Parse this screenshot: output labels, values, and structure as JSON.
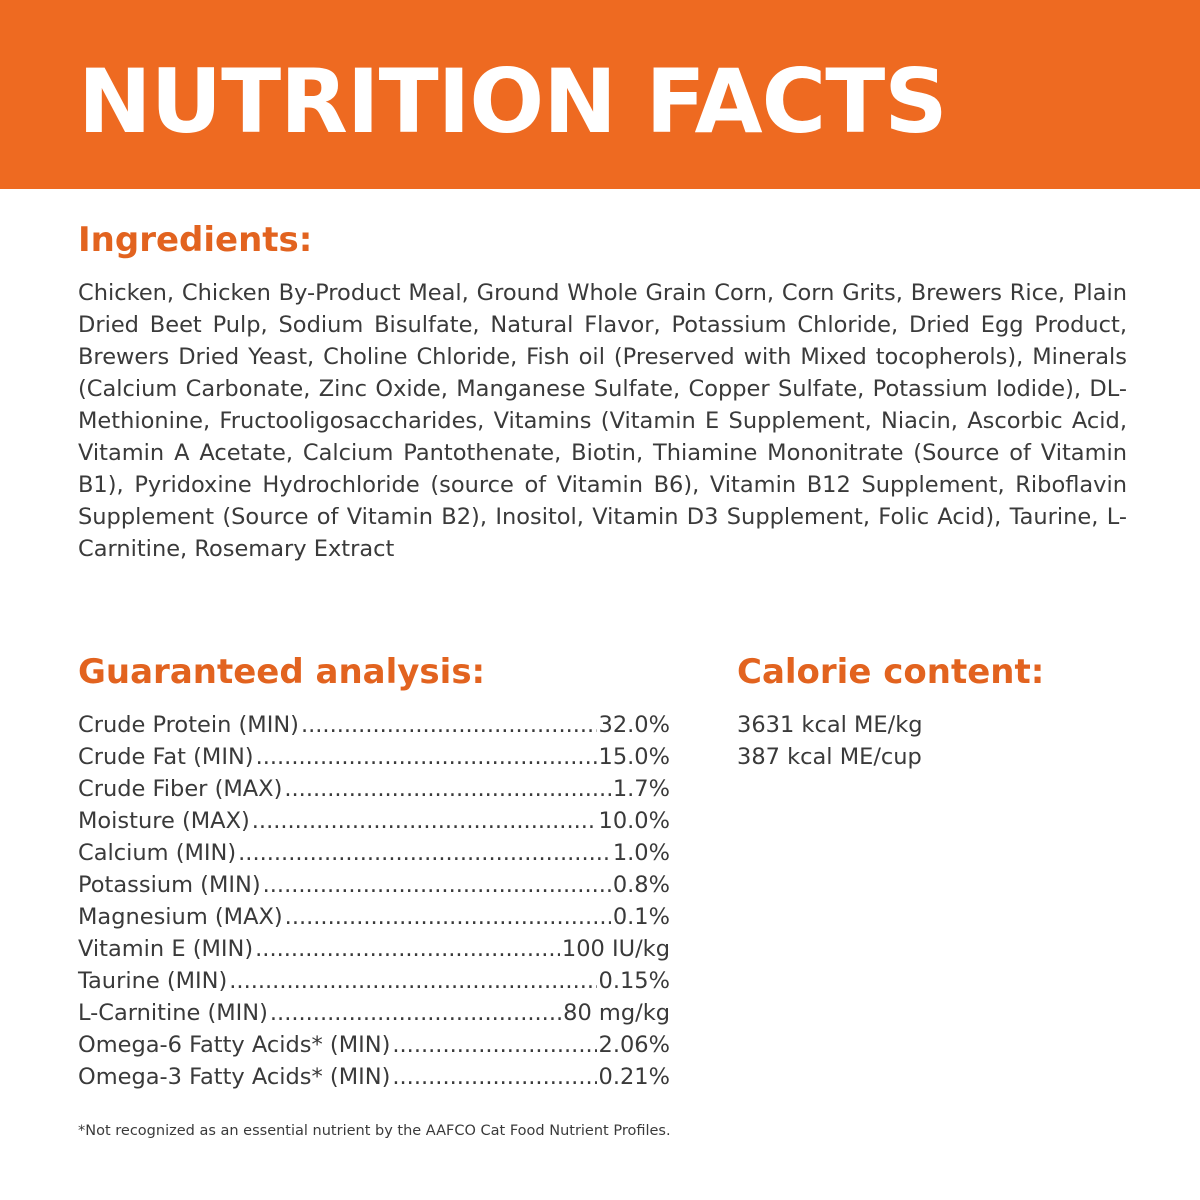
{
  "banner": {
    "title": "NUTRITION FACTS",
    "background_color": "#ee6a21",
    "text_color": "#ffffff"
  },
  "ingredients": {
    "heading": "Ingredients:",
    "text": "Chicken, Chicken By-Product Meal, Ground Whole Grain Corn, Corn Grits, Brewers Rice, Plain Dried Beet Pulp, Sodium Bisulfate, Natural Flavor, Potassium Chloride, Dried Egg Product, Brewers Dried Yeast, Choline Chloride, Fish oil (Preserved with Mixed tocopherols), Minerals (Calcium Carbonate, Zinc Oxide, Manganese Sulfate, Copper Sulfate, Potassium Iodide), DL-Methionine, Fructooligosaccharides, Vitamins (Vitamin E Supplement, Niacin, Ascorbic Acid, Vitamin A Acetate, Calcium Pantothenate, Biotin, Thiamine Mononitrate (Source of Vitamin B1), Pyridoxine Hydrochloride (source of Vitamin B6), Vitamin B12 Supplement, Riboflavin Supplement (Source of Vitamin B2), Inositol, Vitamin D3 Supplement, Folic Acid), Taurine, L-Carnitine, Rosemary Extract"
  },
  "analysis": {
    "heading": "Guaranteed analysis:",
    "rows": [
      {
        "label": "Crude Protein (MIN)",
        "value": "32.0%"
      },
      {
        "label": "Crude Fat (MIN)",
        "value": "15.0%"
      },
      {
        "label": "Crude Fiber (MAX)",
        "value": "1.7%"
      },
      {
        "label": "Moisture (MAX)",
        "value": "10.0%"
      },
      {
        "label": "Calcium (MIN)",
        "value": "1.0%"
      },
      {
        "label": "Potassium (MIN)",
        "value": "0.8%"
      },
      {
        "label": "Magnesium (MAX)",
        "value": "0.1%"
      },
      {
        "label": "Vitamin E (MIN)",
        "value": "100 IU/kg"
      },
      {
        "label": "Taurine (MIN)",
        "value": "0.15%"
      },
      {
        "label": "L-Carnitine (MIN)",
        "value": "80 mg/kg"
      },
      {
        "label": "Omega-6 Fatty Acids* (MIN)",
        "value": "2.06%"
      },
      {
        "label": "Omega-3 Fatty Acids* (MIN)",
        "value": "0.21%"
      }
    ]
  },
  "calorie": {
    "heading": "Calorie content:",
    "lines": [
      "3631 kcal ME/kg",
      "387 kcal ME/cup"
    ]
  },
  "footnote": "*Not recognized as an essential nutrient by the AAFCO Cat Food Nutrient Profiles.",
  "colors": {
    "accent": "#e2631f",
    "body_text": "#3a3a3a"
  }
}
